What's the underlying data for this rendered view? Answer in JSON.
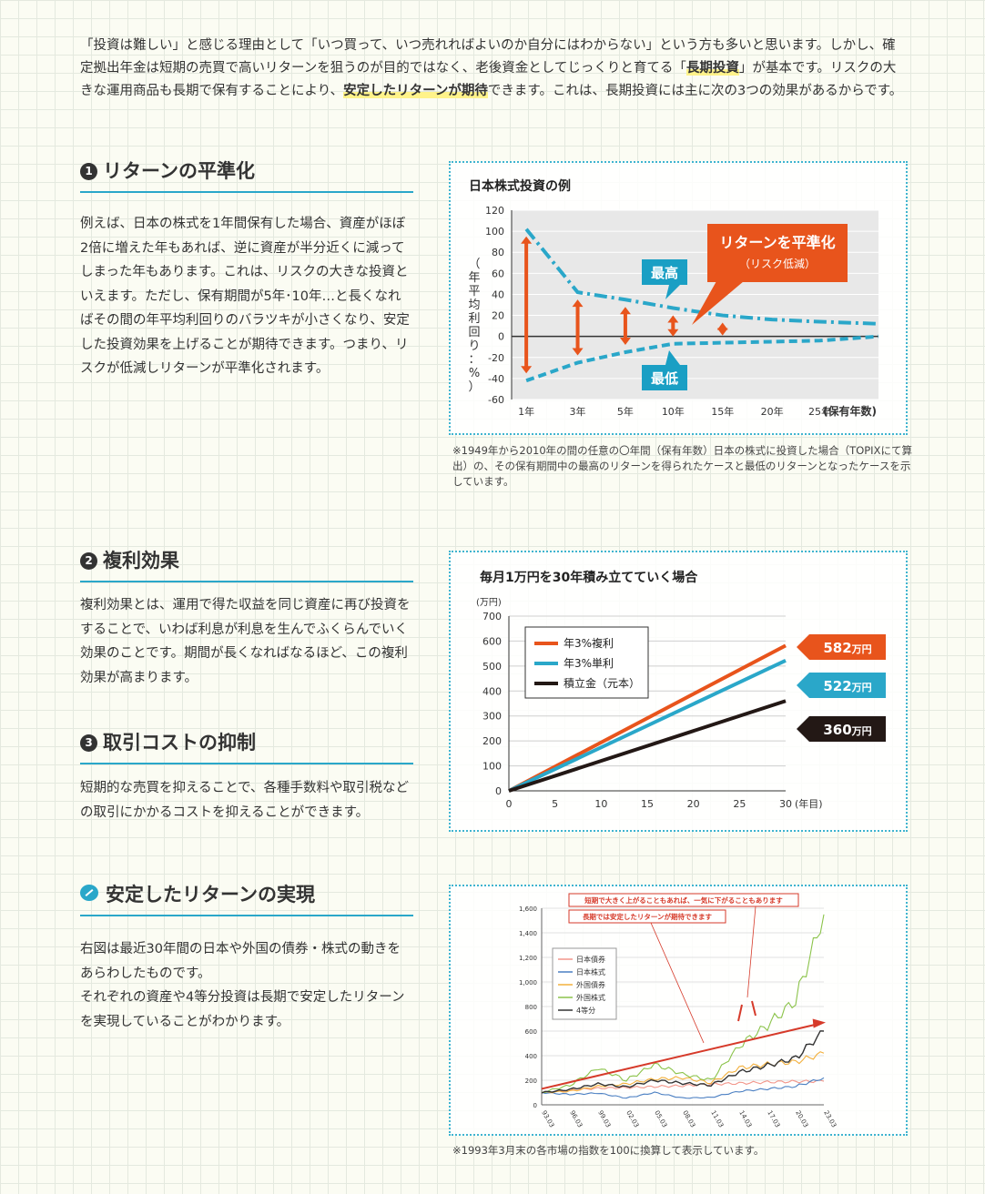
{
  "intro": {
    "part1": "「投資は難しい」と感じる理由として「いつ買って、いつ売れればよいのか自分にはわからない」という方も多いと思います。しかし、確定拠出年金は短期の売買で高いリターンを狙うのが目的ではなく、老後資金としてじっくりと育てる「",
    "highlight1": "長期投資",
    "part2": "」が基本です。リスクの大きな運用商品も長期で保有することにより、",
    "highlight2": "安定したリターンが期待",
    "part3": "できます。これは、長期投資には主に次の3つの効果があるからです。"
  },
  "section1": {
    "number": "1",
    "title": "リターンの平準化",
    "body": "例えば、日本の株式を1年間保有した場合、資産がほぼ2倍に増えた年もあれば、逆に資産が半分近くに減ってしまった年もあります。これは、リスクの大きな投資といえます。ただし、保有期間が5年･10年…と長くなればその間の年平均利回りのバラツキが小さくなり、安定した投資効果を上げることが期待できます。つまり、リスクが低減しリターンが平準化されます。"
  },
  "section2": {
    "number": "2",
    "title": "複利効果",
    "body": "複利効果とは、運用で得た収益を同じ資産に再び投資をすることで、いわば利息が利息を生んでふくらんでいく効果のことです。期間が長くなればなるほど、この複利効果が高まります。"
  },
  "section3": {
    "number": "3",
    "title": "取引コストの抑制",
    "body": "短期的な売買を抑えることで、各種手数料や取引税などの取引にかかるコストを抑えることができます。"
  },
  "section4": {
    "title": "安定したリターンの実現",
    "body": "右図は最近30年間の日本や外国の債券・株式の動きをあらわしたものです。\nそれぞれの資産や4等分投資は長期で安定したリターンを実現していることがわかります。"
  },
  "chart_data": [
    {
      "type": "line",
      "title": "日本株式投資の例",
      "ylabel": "（年平均利回り：%）",
      "x_ticks": [
        "1年",
        "3年",
        "5年",
        "10年",
        "15年",
        "20年",
        "25年"
      ],
      "x_unit": "(保有年数)",
      "ylim": [
        -60,
        120
      ],
      "y_ticks": [
        120,
        100,
        80,
        60,
        40,
        20,
        0,
        -20,
        -40,
        -60
      ],
      "series": [
        {
          "name": "最高",
          "x": [
            1,
            3,
            5,
            10,
            15,
            20,
            25,
            30
          ],
          "y": [
            102,
            42,
            35,
            27,
            20,
            16,
            14,
            12
          ]
        },
        {
          "name": "最低",
          "x": [
            1,
            3,
            5,
            10,
            15,
            20,
            25,
            30
          ],
          "y": [
            -42,
            -25,
            -15,
            -7,
            -6,
            -5,
            -4,
            0
          ]
        }
      ],
      "annotation": {
        "title": "リターンを平準化",
        "sub": "（リスク低減）"
      },
      "grid": true,
      "colors": {
        "line": "#2aa7c9",
        "arrow": "#e8541c",
        "callout": "#e8541c"
      }
    },
    {
      "type": "line",
      "title": "毎月1万円を30年積み立てていく場合",
      "ylabel_unit": "(万円)",
      "x_unit": "(年目)",
      "xlim": [
        0,
        30
      ],
      "ylim": [
        0,
        700
      ],
      "x_ticks": [
        0,
        5,
        10,
        15,
        20,
        25,
        30
      ],
      "y_ticks": [
        0,
        100,
        200,
        300,
        400,
        500,
        600,
        700
      ],
      "series": [
        {
          "name": "年3%複利",
          "color": "#e8541c",
          "x": [
            0,
            30
          ],
          "y": [
            0,
            582
          ]
        },
        {
          "name": "年3%単利",
          "color": "#2aa7c9",
          "x": [
            0,
            30
          ],
          "y": [
            0,
            522
          ]
        },
        {
          "name": "積立金（元本）",
          "color": "#231815",
          "x": [
            0,
            30
          ],
          "y": [
            0,
            360
          ]
        }
      ],
      "end_labels": [
        {
          "value": "582",
          "unit": "万円",
          "color": "#e8541c"
        },
        {
          "value": "522",
          "unit": "万円",
          "color": "#2aa7c9"
        },
        {
          "value": "360",
          "unit": "万円",
          "color": "#231815"
        }
      ],
      "legend": "top-left",
      "grid": true
    },
    {
      "type": "line",
      "ylim": [
        0,
        1600
      ],
      "y_ticks": [
        0,
        200,
        400,
        600,
        800,
        "1,000",
        "1,200",
        "1,400",
        "1,600"
      ],
      "x_ticks": [
        "93.03",
        "96.03",
        "99.03",
        "02.03",
        "05.03",
        "08.03",
        "11.03",
        "14.03",
        "17.03",
        "20.03",
        "23.03"
      ],
      "series": [
        {
          "name": "日本債券",
          "color": "#f2968a",
          "x": [
            0,
            3,
            6,
            9,
            12,
            15,
            18,
            21,
            24,
            27,
            30
          ],
          "y": [
            100,
            120,
            135,
            140,
            148,
            155,
            168,
            175,
            185,
            190,
            192
          ]
        },
        {
          "name": "日本株式",
          "color": "#4a7fc2",
          "x": [
            0,
            3,
            6,
            9,
            12,
            15,
            18,
            21,
            24,
            27,
            30
          ],
          "y": [
            100,
            85,
            95,
            55,
            100,
            55,
            60,
            110,
            130,
            150,
            220
          ]
        },
        {
          "name": "外国債券",
          "color": "#f3b03c",
          "x": [
            0,
            3,
            6,
            9,
            12,
            15,
            18,
            21,
            24,
            27,
            30
          ],
          "y": [
            100,
            110,
            150,
            170,
            210,
            220,
            180,
            300,
            330,
            350,
            420
          ]
        },
        {
          "name": "外国株式",
          "color": "#8bc34a",
          "x": [
            0,
            3,
            6,
            9,
            12,
            15,
            18,
            21,
            24,
            27,
            30
          ],
          "y": [
            100,
            160,
            300,
            200,
            330,
            250,
            200,
            480,
            650,
            850,
            1550
          ]
        },
        {
          "name": "4等分",
          "color": "#333333",
          "x": [
            0,
            3,
            6,
            9,
            12,
            15,
            18,
            21,
            24,
            27,
            30
          ],
          "y": [
            100,
            125,
            170,
            145,
            200,
            175,
            160,
            265,
            320,
            380,
            600
          ]
        }
      ],
      "annotations": [
        "短期で大きく上がることもあれば、一気に下がることもあります",
        "長期では安定したリターンが期待できます"
      ],
      "legend": "top-left",
      "colors": {
        "trend_arrow": "#d63a2a",
        "callout": "#d63a2a"
      }
    }
  ],
  "notes": {
    "chart1": "※1949年から2010年の間の任意の〇年間（保有年数）日本の株式に投資した場合（TOPIXにて算出）の、その保有期間中の最高のリターンを得られたケースと最低のリターンとなったケースを示しています。",
    "chart3": "※1993年3月末の各市場の指数を100に換算して表示しています。"
  }
}
